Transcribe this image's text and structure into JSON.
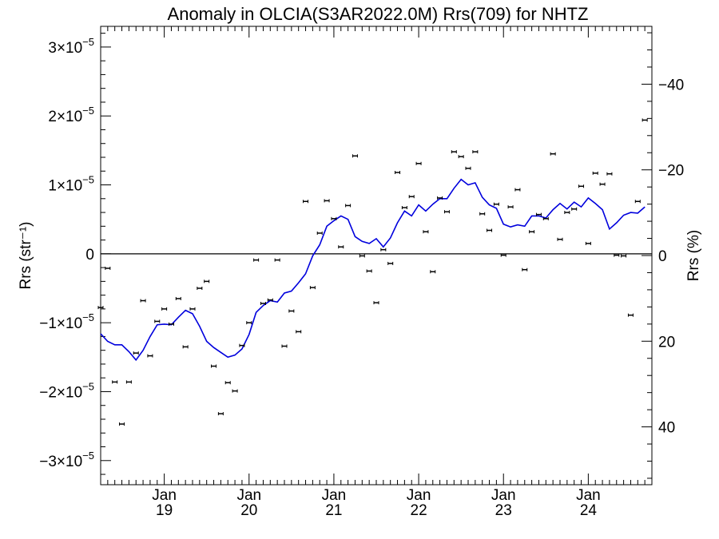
{
  "chart_data": {
    "type": "scatter",
    "title": "Anomaly in OLCIA(S3AR2022.0M) Rrs(709) for NHTZ",
    "ylabel": "Rrs (str⁻¹)",
    "y2label": "Rrs (%)",
    "ylim": [
      -3.35e-05,
      3.3e-05
    ],
    "y2lim": [
      53.5,
      -53.5
    ],
    "y_ticks": [
      {
        "value": 3e-05,
        "mantissa": "3",
        "exp": "−5"
      },
      {
        "value": 2e-05,
        "mantissa": "2",
        "exp": "−5"
      },
      {
        "value": 1e-05,
        "mantissa": "1",
        "exp": "−5"
      },
      {
        "value": 0,
        "mantissa": "0",
        "exp": ""
      },
      {
        "value": -1e-05,
        "mantissa": "−1",
        "exp": "−5"
      },
      {
        "value": -2e-05,
        "mantissa": "−2",
        "exp": "−5"
      },
      {
        "value": -3e-05,
        "mantissa": "−3",
        "exp": "−5"
      }
    ],
    "y2_ticks": [
      {
        "value": -40,
        "label": "−40"
      },
      {
        "value": -20,
        "label": "−20"
      },
      {
        "value": 0,
        "label": "0"
      },
      {
        "value": 20,
        "label": "20"
      },
      {
        "value": 40,
        "label": "40"
      }
    ],
    "times_label": "×10",
    "xlim": [
      "2018-04",
      "2024-10"
    ],
    "x_ticks": [
      {
        "date": "2019-01",
        "month": "Jan",
        "year": "19"
      },
      {
        "date": "2020-01",
        "month": "Jan",
        "year": "20"
      },
      {
        "date": "2021-01",
        "month": "Jan",
        "year": "21"
      },
      {
        "date": "2022-01",
        "month": "Jan",
        "year": "22"
      },
      {
        "date": "2023-01",
        "month": "Jan",
        "year": "23"
      },
      {
        "date": "2024-01",
        "month": "Jan",
        "year": "24"
      }
    ],
    "zero_line": true,
    "grid": false,
    "series": [
      {
        "marker": "error-bar",
        "color": "#000000",
        "points": [
          [
            "2018-04",
            -7.8e-06
          ],
          [
            "2018-05",
            -2.1e-06
          ],
          [
            "2018-06",
            -1.86e-05
          ],
          [
            "2018-07",
            -2.47e-05
          ],
          [
            "2018-08",
            -1.86e-05
          ],
          [
            "2018-09",
            -1.44e-05
          ],
          [
            "2018-10",
            -6.8e-06
          ],
          [
            "2018-11",
            -1.48e-05
          ],
          [
            "2018-12",
            -9.8e-06
          ],
          [
            "2019-01",
            -8e-06
          ],
          [
            "2019-02",
            -1.02e-05
          ],
          [
            "2019-03",
            -6.5e-06
          ],
          [
            "2019-04",
            -1.35e-05
          ],
          [
            "2019-05",
            -8e-06
          ],
          [
            "2019-06",
            -5e-06
          ],
          [
            "2019-07",
            -4e-06
          ],
          [
            "2019-08",
            -1.63e-05
          ],
          [
            "2019-09",
            -2.32e-05
          ],
          [
            "2019-10",
            -1.87e-05
          ],
          [
            "2019-11",
            -1.99e-05
          ],
          [
            "2019-12",
            -1.33e-05
          ],
          [
            "2020-01",
            -1e-05
          ],
          [
            "2020-02",
            -9e-07
          ],
          [
            "2020-03",
            -7.2e-06
          ],
          [
            "2020-04",
            -6.7e-06
          ],
          [
            "2020-05",
            -9e-07
          ],
          [
            "2020-06",
            -1.34e-05
          ],
          [
            "2020-07",
            -8.3e-06
          ],
          [
            "2020-08",
            -1.13e-05
          ],
          [
            "2020-09",
            7.6e-06
          ],
          [
            "2020-10",
            -4.9e-06
          ],
          [
            "2020-11",
            3e-06
          ],
          [
            "2020-12",
            7.7e-06
          ],
          [
            "2021-01",
            5.1e-06
          ],
          [
            "2021-02",
            1e-06
          ],
          [
            "2021-03",
            7e-06
          ],
          [
            "2021-04",
            1.42e-05
          ],
          [
            "2021-05",
            -3e-07
          ],
          [
            "2021-06",
            -2.5e-06
          ],
          [
            "2021-07",
            -7.1e-06
          ],
          [
            "2021-08",
            6e-07
          ],
          [
            "2021-09",
            -1.4e-06
          ],
          [
            "2021-10",
            1.18e-05
          ],
          [
            "2021-11",
            6.7e-06
          ],
          [
            "2021-12",
            8.3e-06
          ],
          [
            "2022-01",
            1.31e-05
          ],
          [
            "2022-02",
            3.2e-06
          ],
          [
            "2022-03",
            -2.6e-06
          ],
          [
            "2022-04",
            8.1e-06
          ],
          [
            "2022-05",
            6.1e-06
          ],
          [
            "2022-06",
            1.48e-05
          ],
          [
            "2022-07",
            1.41e-05
          ],
          [
            "2022-08",
            1.24e-05
          ],
          [
            "2022-09",
            1.48e-05
          ],
          [
            "2022-10",
            5.8e-06
          ],
          [
            "2022-11",
            3.4e-06
          ],
          [
            "2022-12",
            7.2e-06
          ],
          [
            "2023-01",
            -2e-07
          ],
          [
            "2023-02",
            6.8e-06
          ],
          [
            "2023-03",
            9.3e-06
          ],
          [
            "2023-04",
            -2.3e-06
          ],
          [
            "2023-05",
            3.2e-06
          ],
          [
            "2023-06",
            5.7e-06
          ],
          [
            "2023-07",
            5.1e-06
          ],
          [
            "2023-08",
            1.45e-05
          ],
          [
            "2023-09",
            2.1e-06
          ],
          [
            "2023-10",
            6e-06
          ],
          [
            "2023-11",
            6.5e-06
          ],
          [
            "2023-12",
            9.8e-06
          ],
          [
            "2024-01",
            1.5e-06
          ],
          [
            "2024-02",
            1.17e-05
          ],
          [
            "2024-03",
            1.01e-05
          ],
          [
            "2024-04",
            1.16e-05
          ],
          [
            "2024-05",
            -2e-07
          ],
          [
            "2024-06",
            -3e-07
          ],
          [
            "2024-07",
            -8.9e-06
          ],
          [
            "2024-08",
            7.6e-06
          ],
          [
            "2024-09",
            1.94e-05
          ]
        ]
      },
      {
        "marker": "line",
        "color": "#0000dd",
        "points": [
          [
            "2018-04",
            -1.16e-05
          ],
          [
            "2018-05",
            -1.27e-05
          ],
          [
            "2018-06",
            -1.32e-05
          ],
          [
            "2018-07",
            -1.32e-05
          ],
          [
            "2018-08",
            -1.42e-05
          ],
          [
            "2018-09",
            -1.54e-05
          ],
          [
            "2018-10",
            -1.4e-05
          ],
          [
            "2018-11",
            -1.2e-05
          ],
          [
            "2018-12",
            -1.03e-05
          ],
          [
            "2019-01",
            -1.02e-05
          ],
          [
            "2019-02",
            -1.03e-05
          ],
          [
            "2019-03",
            -9.2e-06
          ],
          [
            "2019-04",
            -8.2e-06
          ],
          [
            "2019-05",
            -8.7e-06
          ],
          [
            "2019-06",
            -1.05e-05
          ],
          [
            "2019-07",
            -1.27e-05
          ],
          [
            "2019-08",
            -1.36e-05
          ],
          [
            "2019-09",
            -1.43e-05
          ],
          [
            "2019-10",
            -1.5e-05
          ],
          [
            "2019-11",
            -1.47e-05
          ],
          [
            "2019-12",
            -1.38e-05
          ],
          [
            "2020-01",
            -1.17e-05
          ],
          [
            "2020-02",
            -8.5e-06
          ],
          [
            "2020-03",
            -7.5e-06
          ],
          [
            "2020-04",
            -6.8e-06
          ],
          [
            "2020-05",
            -7e-06
          ],
          [
            "2020-06",
            -5.7e-06
          ],
          [
            "2020-07",
            -5.4e-06
          ],
          [
            "2020-08",
            -4.2e-06
          ],
          [
            "2020-09",
            -2.9e-06
          ],
          [
            "2020-10",
            -3e-07
          ],
          [
            "2020-11",
            1.3e-06
          ],
          [
            "2020-12",
            4e-06
          ],
          [
            "2021-01",
            4.8e-06
          ],
          [
            "2021-02",
            5.5e-06
          ],
          [
            "2021-03",
            5e-06
          ],
          [
            "2021-04",
            2.5e-06
          ],
          [
            "2021-05",
            1.8e-06
          ],
          [
            "2021-06",
            1.5e-06
          ],
          [
            "2021-07",
            2.2e-06
          ],
          [
            "2021-08",
            1e-06
          ],
          [
            "2021-09",
            2.3e-06
          ],
          [
            "2021-10",
            4.5e-06
          ],
          [
            "2021-11",
            6.2e-06
          ],
          [
            "2021-12",
            5.5e-06
          ],
          [
            "2022-01",
            7.1e-06
          ],
          [
            "2022-02",
            6.2e-06
          ],
          [
            "2022-03",
            7.2e-06
          ],
          [
            "2022-04",
            8e-06
          ],
          [
            "2022-05",
            8e-06
          ],
          [
            "2022-06",
            9.5e-06
          ],
          [
            "2022-07",
            1.08e-05
          ],
          [
            "2022-08",
            1e-05
          ],
          [
            "2022-09",
            1.03e-05
          ],
          [
            "2022-10",
            8.2e-06
          ],
          [
            "2022-11",
            7.1e-06
          ],
          [
            "2022-12",
            6.6e-06
          ],
          [
            "2023-01",
            4.3e-06
          ],
          [
            "2023-02",
            3.9e-06
          ],
          [
            "2023-03",
            4.2e-06
          ],
          [
            "2023-04",
            4e-06
          ],
          [
            "2023-05",
            5.5e-06
          ],
          [
            "2023-06",
            5.5e-06
          ],
          [
            "2023-07",
            5.2e-06
          ],
          [
            "2023-08",
            6.4e-06
          ],
          [
            "2023-09",
            7.3e-06
          ],
          [
            "2023-10",
            6.5e-06
          ],
          [
            "2023-11",
            7.5e-06
          ],
          [
            "2023-12",
            6.8e-06
          ],
          [
            "2024-01",
            8.1e-06
          ],
          [
            "2024-02",
            7.3e-06
          ],
          [
            "2024-03",
            6.4e-06
          ],
          [
            "2024-04",
            3.6e-06
          ],
          [
            "2024-05",
            4.5e-06
          ],
          [
            "2024-06",
            5.6e-06
          ],
          [
            "2024-07",
            6e-06
          ],
          [
            "2024-08",
            5.9e-06
          ],
          [
            "2024-09",
            6.8e-06
          ]
        ]
      }
    ]
  }
}
